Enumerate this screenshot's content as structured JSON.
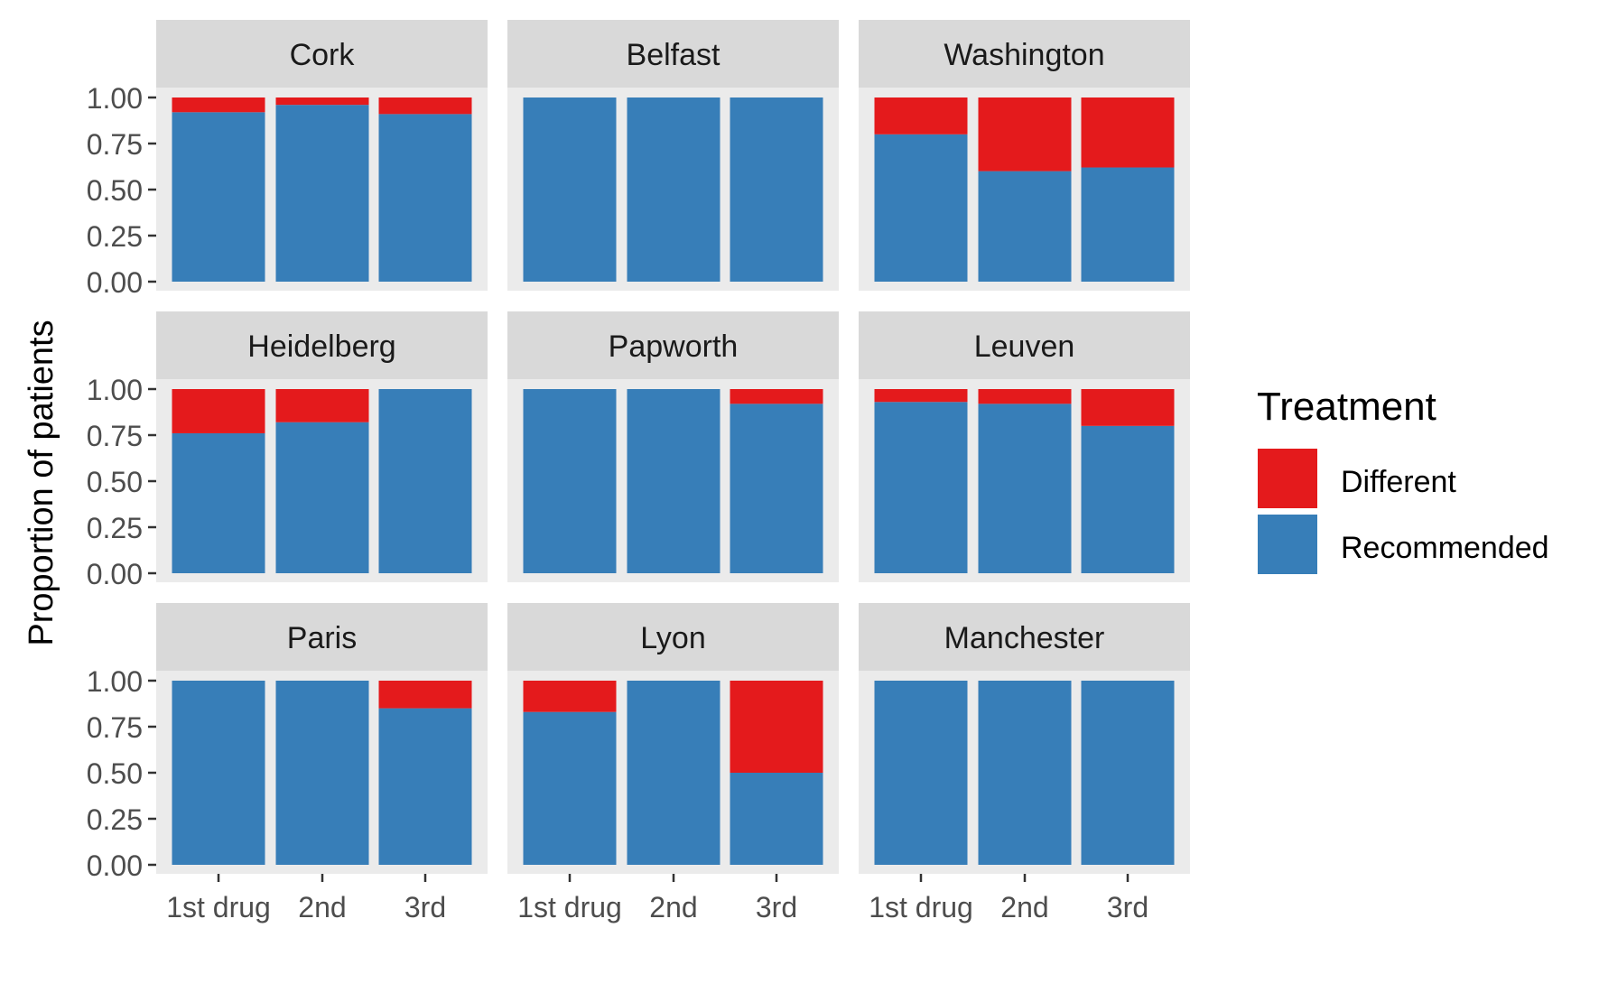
{
  "chart_data": {
    "type": "bar",
    "stacked": true,
    "ylabel": "Proportion of patients",
    "xlabel": "",
    "ylim": [
      0,
      1
    ],
    "yticks": [
      "0.00",
      "0.25",
      "0.50",
      "0.75",
      "1.00"
    ],
    "categories": [
      "1st drug",
      "2nd",
      "3rd"
    ],
    "legend": {
      "title": "Treatment",
      "position": "right",
      "entries": [
        {
          "name": "Different",
          "color": "#e41a1c"
        },
        {
          "name": "Recommended",
          "color": "#377eb8"
        }
      ]
    },
    "colors": {
      "Different": "#e41a1c",
      "Recommended": "#377eb8",
      "panel_background": "#ebebeb",
      "strip_background": "#d9d9d9",
      "text": "#4d4d4d"
    },
    "grid": false,
    "facets": [
      {
        "name": "Cork",
        "recommended": [
          0.92,
          0.96,
          0.91
        ]
      },
      {
        "name": "Belfast",
        "recommended": [
          1.0,
          1.0,
          1.0
        ]
      },
      {
        "name": "Washington",
        "recommended": [
          0.8,
          0.6,
          0.62
        ]
      },
      {
        "name": "Heidelberg",
        "recommended": [
          0.76,
          0.82,
          1.0
        ]
      },
      {
        "name": "Papworth",
        "recommended": [
          1.0,
          1.0,
          0.92
        ]
      },
      {
        "name": "Leuven",
        "recommended": [
          0.93,
          0.92,
          0.8
        ]
      },
      {
        "name": "Paris",
        "recommended": [
          1.0,
          1.0,
          0.85
        ]
      },
      {
        "name": "Lyon",
        "recommended": [
          0.83,
          1.0,
          0.5
        ]
      },
      {
        "name": "Manchester",
        "recommended": [
          1.0,
          1.0,
          1.0
        ]
      }
    ]
  }
}
